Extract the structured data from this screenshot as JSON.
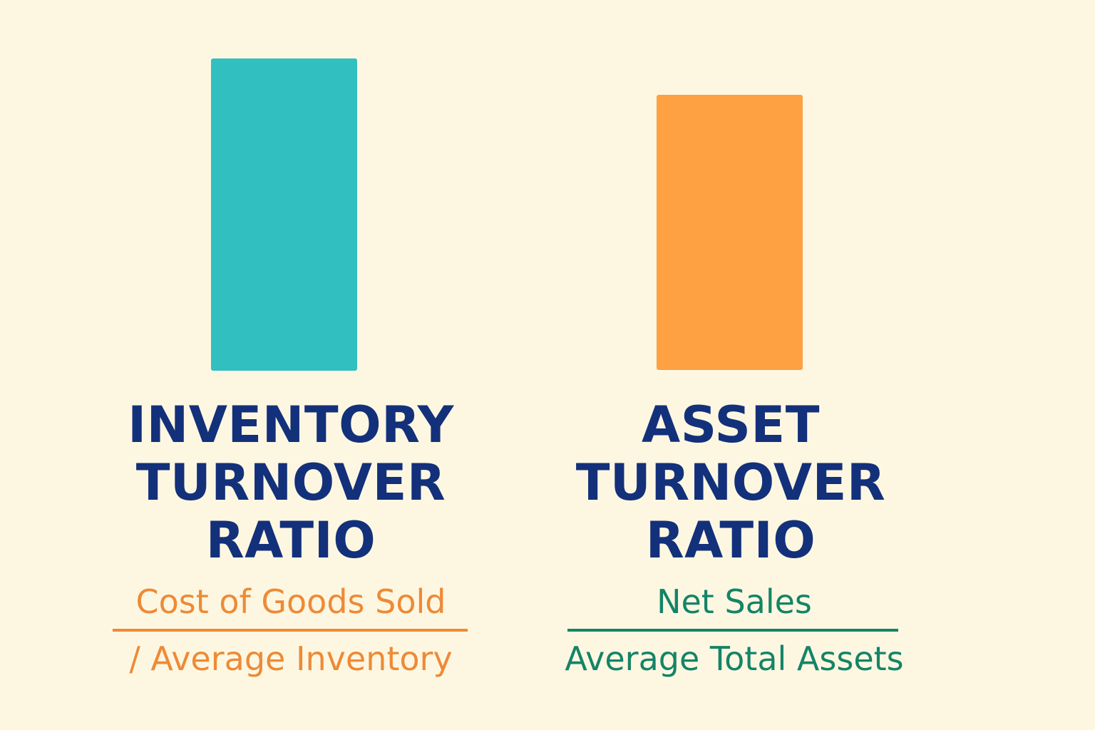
{
  "colors": {
    "background": "#fdf7e2",
    "title": "#13307a",
    "inventory_bar": "#32bfbf",
    "inventory_formula": "#ee8a35",
    "asset_bar": "#fda142",
    "asset_formula": "#148467"
  },
  "inventory": {
    "title_lines": [
      "INVENTORY",
      "TURNOVER",
      "RATIO"
    ],
    "numerator": "Cost of Goods Sold",
    "denominator": "/ Average Inventory"
  },
  "asset": {
    "title_lines": [
      "ASSET",
      "TURNOVER",
      "RATIO"
    ],
    "numerator": "Net Sales",
    "denominator": "Average Total Assets"
  }
}
